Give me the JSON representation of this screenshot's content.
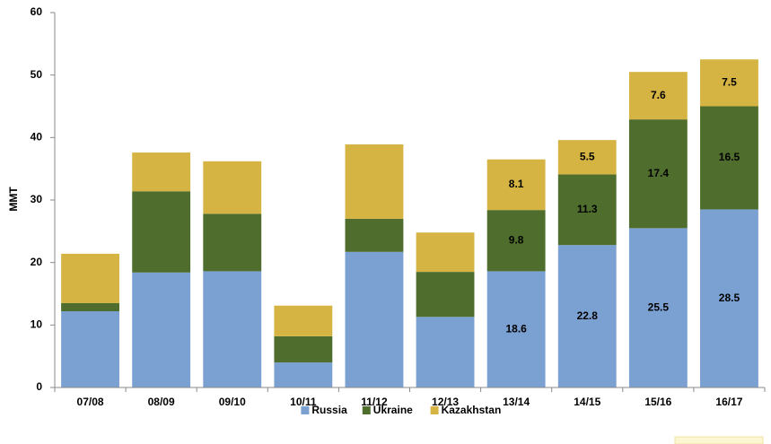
{
  "chart_data": {
    "type": "stacked_bar",
    "y_label": "MMT",
    "categories": [
      "07/08",
      "08/09",
      "09/10",
      "10/11",
      "11/12",
      "12/13",
      "13/14",
      "14/15",
      "15/16",
      "16/17"
    ],
    "series": [
      {
        "name": "Russia",
        "color": "#7ba0d2",
        "values": [
          12.2,
          18.4,
          18.6,
          4.0,
          21.7,
          11.3,
          18.6,
          22.8,
          25.5,
          28.5
        ],
        "value_labels": [
          null,
          null,
          null,
          null,
          null,
          null,
          "18.6",
          "22.8",
          "25.5",
          "28.5"
        ]
      },
      {
        "name": "Ukraine",
        "color": "#4f6e2d",
        "values": [
          1.3,
          13.0,
          9.2,
          4.2,
          5.3,
          7.2,
          9.8,
          11.3,
          17.4,
          16.5
        ],
        "value_labels": [
          null,
          null,
          null,
          null,
          null,
          null,
          "9.8",
          "11.3",
          "17.4",
          "16.5"
        ]
      },
      {
        "name": "Kazakhstan",
        "color": "#d5b443",
        "values": [
          7.9,
          6.2,
          8.4,
          4.9,
          11.9,
          6.3,
          8.1,
          5.5,
          7.6,
          7.5
        ],
        "value_labels": [
          null,
          null,
          null,
          null,
          null,
          null,
          "8.1",
          "5.5",
          "7.6",
          "7.5"
        ]
      }
    ],
    "ylim": [
      0,
      60
    ],
    "yticks": [
      0,
      10,
      20,
      30,
      40,
      50,
      60
    ],
    "grid": false,
    "legend": "bottom"
  }
}
